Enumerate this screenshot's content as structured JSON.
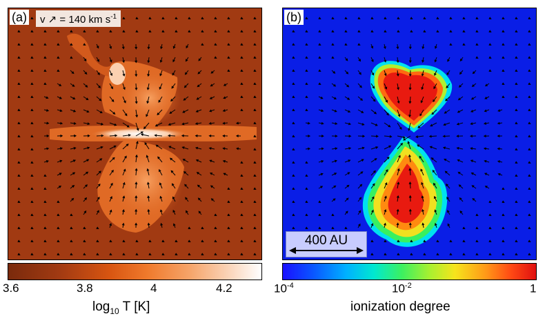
{
  "panel_a": {
    "label": "(a)",
    "velocity_key": {
      "prefix": "v",
      "value": "= 140 km s",
      "exp": "-1"
    },
    "colorbar": {
      "ticks": [
        "3.6",
        "3.8",
        "4",
        "4.2"
      ],
      "title_pre": "log",
      "title_sub": "10",
      "title_post": " T [K]"
    }
  },
  "panel_b": {
    "label": "(b)",
    "scale_bar": "400 AU",
    "colorbar": {
      "ticks": [
        {
          "base": "10",
          "exp": "-4"
        },
        {
          "base": "10",
          "exp": "-2"
        },
        {
          "base": "1",
          "exp": ""
        }
      ],
      "title": "ionization degree"
    }
  },
  "colors": {
    "background_a": "#a13a12",
    "background_b": "#0a1ee6",
    "arrow": "#000000"
  }
}
